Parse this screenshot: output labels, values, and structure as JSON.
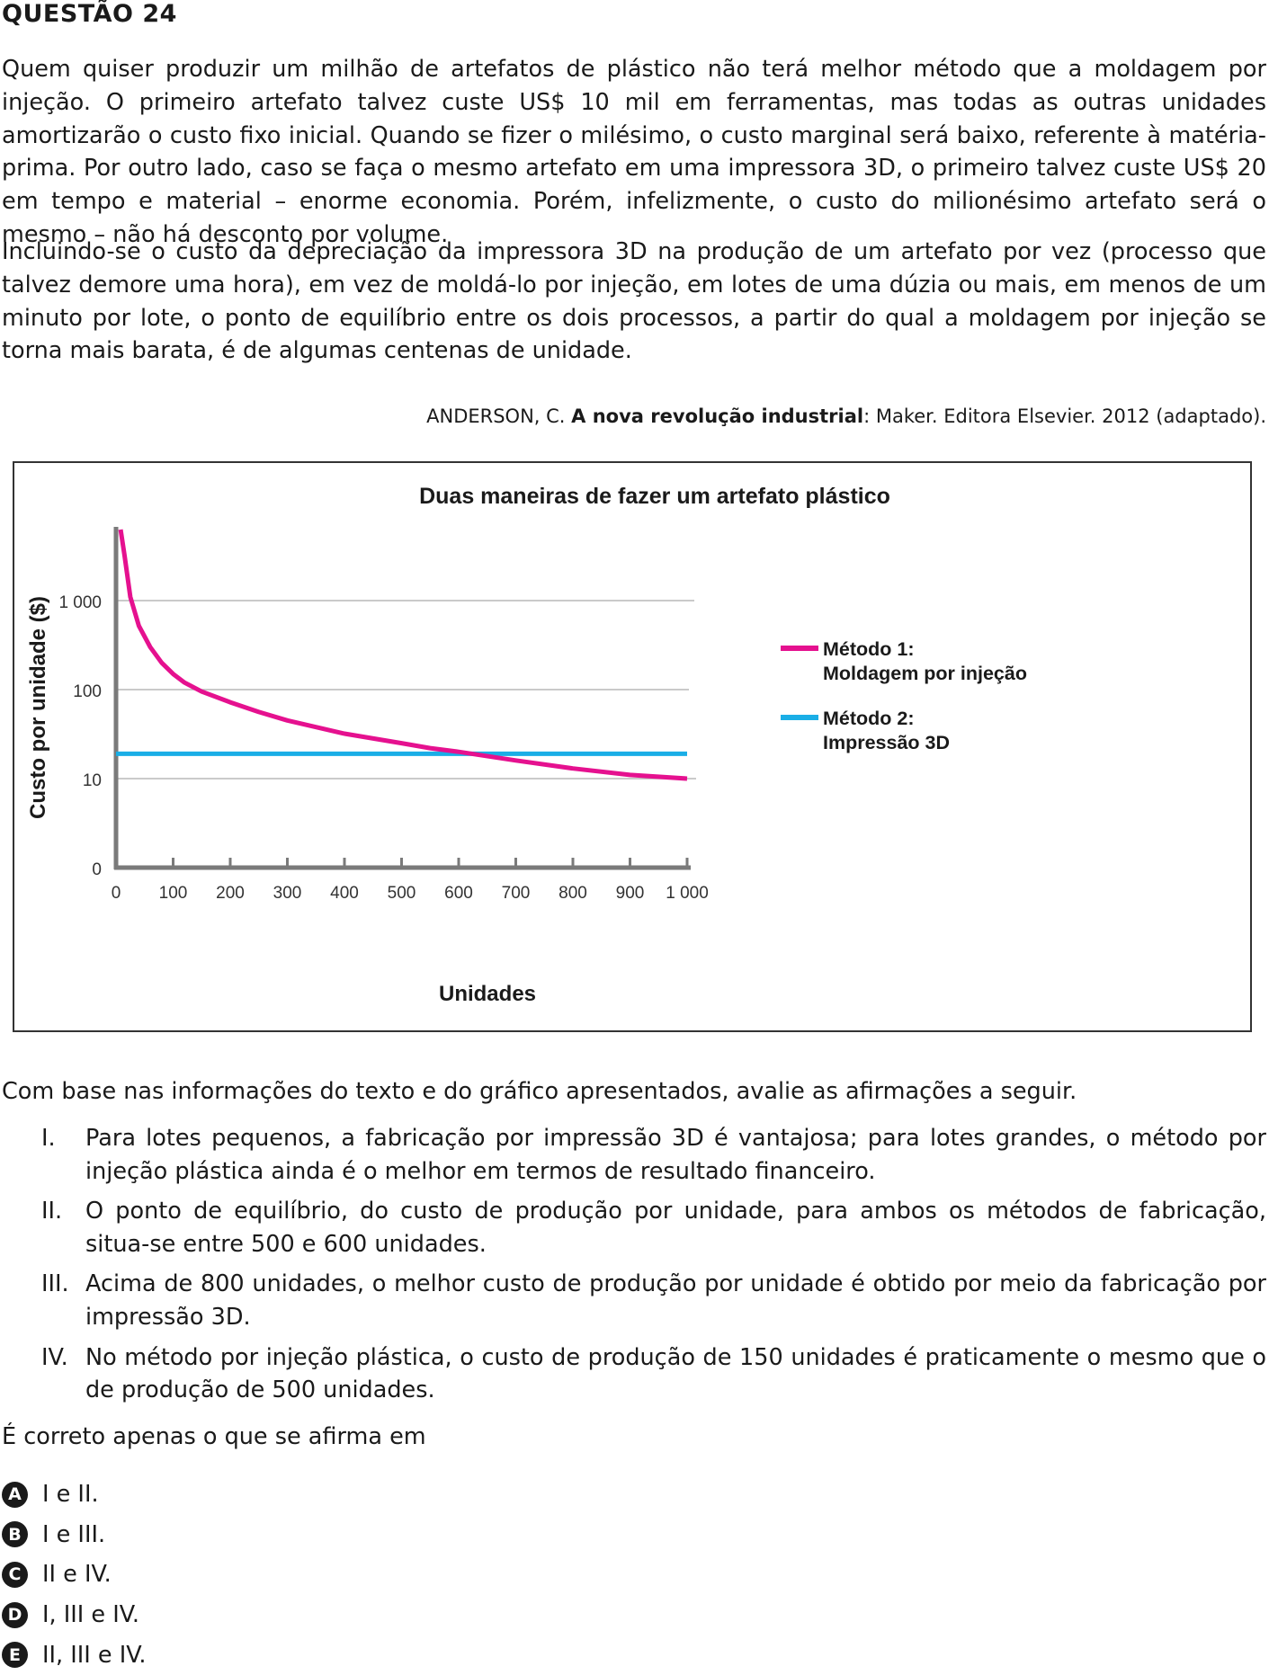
{
  "question": {
    "title": "QUESTÃO 24",
    "paragraph1": "Quem quiser produzir um milhão de artefatos de plástico não terá melhor método que a moldagem por injeção. O primeiro artefato talvez custe US$ 10 mil em ferramentas, mas todas as outras unidades amortizarão o custo fixo inicial. Quando se fizer o milésimo, o custo marginal será baixo, referente à matéria-prima. Por outro lado, caso se faça o mesmo artefato em uma impressora 3D, o primeiro talvez custe US$ 20 em tempo e material – enorme economia. Porém, infelizmente, o custo do milionésimo artefato será o mesmo – não há desconto por volume.",
    "paragraph2": "Incluindo-se o custo da depreciação da impressora 3D na produção de um artefato por vez (processo que talvez demore uma hora), em vez de moldá-lo por injeção, em lotes de uma dúzia ou mais, em menos de um minuto por lote, o ponto de equilíbrio entre os dois processos, a partir do qual a moldagem por injeção se torna mais barata, é de algumas centenas de unidade.",
    "citation": {
      "author": "ANDERSON, C. ",
      "work": "A nova revolução industrial",
      "rest": ": Maker. Editora Elsevier. 2012 (adaptado)."
    },
    "intro": "Com base nas informações do texto e do gráfico apresentados, avalie as afirmações a seguir.",
    "statements": [
      {
        "roman": "I.",
        "text": "Para lotes pequenos, a fabricação por impressão 3D é vantajosa; para lotes grandes, o método por injeção plástica ainda é o melhor em termos de resultado financeiro."
      },
      {
        "roman": "II.",
        "text": "O ponto de equilíbrio, do custo de produção por unidade, para ambos os métodos de fabricação, situa-se entre 500 e 600 unidades."
      },
      {
        "roman": "III.",
        "text": "Acima de 800 unidades, o melhor custo de produção por unidade é obtido por meio da fabricação por impressão 3D."
      },
      {
        "roman": "IV.",
        "text": "No método por injeção plástica, o custo de produção de 150 unidades é praticamente o mesmo que o de produção de 500 unidades."
      }
    ],
    "ask": "É correto apenas o que se afirma em",
    "options": [
      {
        "letter": "A",
        "text": "I e II."
      },
      {
        "letter": "B",
        "text": "I e III."
      },
      {
        "letter": "C",
        "text": "II e IV."
      },
      {
        "letter": "D",
        "text": "I, III e IV."
      },
      {
        "letter": "E",
        "text": "II, III e IV."
      }
    ]
  },
  "chart_data": {
    "type": "line",
    "title": "Duas maneiras de fazer um artefato plástico",
    "xlabel": "Unidades",
    "ylabel": "Custo por unidade ($)",
    "xlim": [
      0,
      1000
    ],
    "x_ticks": [
      0,
      100,
      200,
      300,
      400,
      500,
      600,
      700,
      800,
      900,
      1000
    ],
    "x_tick_labels": [
      "0",
      "100",
      "200",
      "300",
      "400",
      "500",
      "600",
      "700",
      "800",
      "900",
      "1 000"
    ],
    "y_scale": "log (levels 0, 10, 100, 1 000 evenly spaced)",
    "y_ticks": [
      0,
      10,
      100,
      1000
    ],
    "y_tick_labels": [
      "0",
      "10",
      "100",
      "1 000"
    ],
    "grid": "horizontal at 10, 100, 1 000",
    "legend_position": "right",
    "series": [
      {
        "name": "Método 1:\nMoldagem por injeção",
        "color": "#e5118f",
        "x": [
          8,
          15,
          25,
          40,
          60,
          80,
          100,
          120,
          150,
          200,
          250,
          300,
          400,
          500,
          550,
          600,
          700,
          800,
          900,
          1000
        ],
        "y": [
          8000,
          3200,
          1100,
          520,
          300,
          200,
          150,
          120,
          95,
          72,
          56,
          45,
          32,
          25,
          22,
          20,
          16,
          13,
          11,
          10
        ]
      },
      {
        "name": "Método 2:\nImpressão 3D",
        "color": "#1aaee6",
        "x": [
          0,
          1000
        ],
        "y": [
          19,
          19
        ]
      }
    ]
  }
}
